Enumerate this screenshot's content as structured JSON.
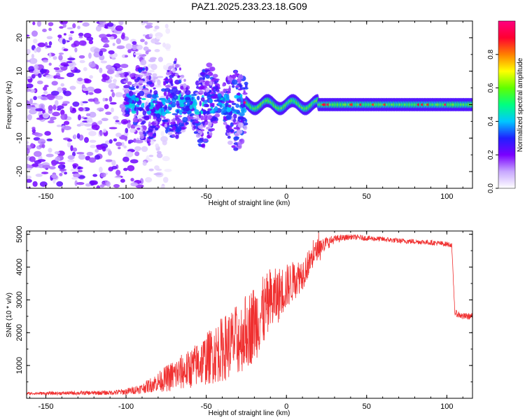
{
  "figure_title": "PAZ1.2025.233.23.18.G09",
  "chart_data": [
    {
      "type": "heatmap",
      "title": "",
      "xlabel": "Height of straight line (km)",
      "ylabel": "Frequency (Hz)",
      "xlim": [
        -162,
        116
      ],
      "ylim": [
        -25,
        25
      ],
      "xticks": [
        -150,
        -100,
        -50,
        0,
        50,
        100
      ],
      "yticks": [
        -20,
        -10,
        0,
        10,
        20
      ],
      "grid": false,
      "colorbar": {
        "label": "Normalized spectral amplitude",
        "range": [
          0.0,
          1.0
        ],
        "ticks": [
          "0.0",
          "0.2",
          "0.4",
          "0.6",
          "0.8"
        ],
        "colors": [
          "#ffffff",
          "#c8a8ff",
          "#7a00ff",
          "#2020ff",
          "#00c8ff",
          "#00ff80",
          "#60ff00",
          "#ffff00",
          "#ff8000",
          "#ff0030",
          "#ff0080"
        ]
      },
      "description_values": {
        "signal_band_center_hz": 0,
        "signal_band_halfwidth_hz": 2,
        "scatter_region_km": [
          -162,
          -95
        ],
        "transition_region_km": [
          -100,
          -25
        ],
        "steady_region_km": [
          -25,
          116
        ]
      }
    },
    {
      "type": "line",
      "title": "",
      "xlabel": "Height of straight line (km)",
      "ylabel": "SNR (10 * v/v)",
      "xlim": [
        -162,
        116
      ],
      "ylim": [
        0,
        5100
      ],
      "xticks": [
        -150,
        -100,
        -50,
        0,
        50,
        100
      ],
      "yticks": [
        1000,
        2000,
        3000,
        4000,
        5000
      ],
      "grid": false,
      "series": [
        {
          "name": "SNR",
          "color": "#f03030",
          "x": [
            -162,
            -150,
            -130,
            -110,
            -100,
            -90,
            -80,
            -70,
            -60,
            -50,
            -40,
            -30,
            -20,
            -10,
            0,
            10,
            20,
            30,
            40,
            50,
            60,
            70,
            80,
            90,
            100,
            103,
            105,
            110,
            116
          ],
          "y": [
            150,
            150,
            160,
            170,
            200,
            300,
            500,
            700,
            900,
            1200,
            1500,
            1800,
            2300,
            2900,
            3400,
            3800,
            4600,
            4850,
            4920,
            4880,
            4850,
            4800,
            4780,
            4750,
            4700,
            4680,
            2600,
            2500,
            2500
          ],
          "noise_amplitude": [
            40,
            50,
            60,
            70,
            100,
            150,
            300,
            500,
            600,
            800,
            1000,
            1100,
            1200,
            1000,
            700,
            500,
            300,
            120,
            80,
            80,
            80,
            80,
            80,
            80,
            80,
            80,
            100,
            100,
            100
          ]
        }
      ]
    }
  ]
}
